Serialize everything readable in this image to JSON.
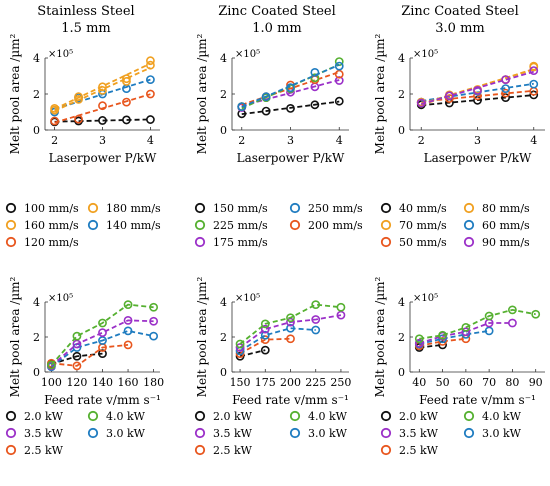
{
  "figure": {
    "columns": [
      {
        "title_line1": "Stainless Steel",
        "title_line2": "1.5 mm"
      },
      {
        "title_line1": "Zinc Coated Steel",
        "title_line2": "1.0 mm"
      },
      {
        "title_line1": "Zinc Coated Steel",
        "title_line2": "3.0 mm"
      }
    ]
  },
  "chart_data": [
    {
      "type": "scatter",
      "panel": "top-left",
      "xlabel": "Laserpower P/kW",
      "ylabel": "Melt pool area /µm²",
      "y_multiplier": "×10⁵",
      "xlim": [
        1.8,
        4.2
      ],
      "ylim": [
        0,
        4
      ],
      "xticks": [
        2,
        3,
        4
      ],
      "yticks": [
        0,
        2,
        4
      ],
      "x": [
        2,
        2.5,
        3,
        3.5,
        4
      ],
      "trendlines": "dashed linear fit per series",
      "series": [
        {
          "name": "100 mm/s",
          "color": "#111111",
          "values": [
            0.45,
            0.5,
            0.53,
            0.56,
            0.58
          ]
        },
        {
          "name": "120 mm/s",
          "color": "#e8561e",
          "values": [
            0.5,
            0.6,
            1.35,
            1.55,
            2.0
          ]
        },
        {
          "name": "140 mm/s",
          "color": "#1f7cc0",
          "values": [
            1.0,
            1.8,
            2.0,
            2.3,
            2.8
          ]
        },
        {
          "name": "160 mm/s",
          "color": "#f0a020",
          "values": [
            1.2,
            1.85,
            2.4,
            2.85,
            3.85
          ]
        },
        {
          "name": "180 mm/s",
          "color": "#f0a020",
          "values": [
            1.1,
            1.7,
            2.2,
            2.7,
            3.6
          ]
        }
      ]
    },
    {
      "type": "scatter",
      "panel": "top-middle",
      "xlabel": "Laserpower P/kW",
      "ylabel": "Melt pool area /µm²",
      "y_multiplier": "×10⁵",
      "xlim": [
        1.8,
        4.2
      ],
      "ylim": [
        0,
        4
      ],
      "xticks": [
        2,
        3,
        4
      ],
      "yticks": [
        0,
        2,
        4
      ],
      "x": [
        2,
        2.5,
        3,
        3.5,
        4
      ],
      "trendlines": "dashed linear fit per series",
      "series": [
        {
          "name": "150 mm/s",
          "color": "#111111",
          "values": [
            0.9,
            1.05,
            1.2,
            1.4,
            1.6
          ]
        },
        {
          "name": "175 mm/s",
          "color": "#9b30c8",
          "values": [
            1.25,
            1.8,
            2.1,
            2.4,
            2.75
          ]
        },
        {
          "name": "200 mm/s",
          "color": "#e8561e",
          "values": [
            1.3,
            1.85,
            2.5,
            2.8,
            3.1
          ]
        },
        {
          "name": "225 mm/s",
          "color": "#55b030",
          "values": [
            1.3,
            1.8,
            2.3,
            2.9,
            3.8
          ]
        },
        {
          "name": "250 mm/s",
          "color": "#1f7cc0",
          "values": [
            1.3,
            1.85,
            2.35,
            3.2,
            3.55
          ]
        }
      ]
    },
    {
      "type": "scatter",
      "panel": "top-right",
      "xlabel": "Laserpower P/kW",
      "ylabel": "Melt pool area /µm²",
      "y_multiplier": "×10⁵",
      "xlim": [
        1.8,
        4.2
      ],
      "ylim": [
        0,
        4
      ],
      "xticks": [
        2,
        3,
        4
      ],
      "yticks": [
        0,
        2,
        4
      ],
      "x": [
        2,
        2.5,
        3,
        3.5,
        4
      ],
      "trendlines": "dashed linear fit per series",
      "series": [
        {
          "name": "40 mm/s",
          "color": "#111111",
          "values": [
            1.4,
            1.5,
            1.65,
            1.8,
            1.95
          ]
        },
        {
          "name": "50 mm/s",
          "color": "#e8561e",
          "values": [
            1.55,
            1.75,
            1.9,
            2.05,
            2.15
          ]
        },
        {
          "name": "60 mm/s",
          "color": "#1f7cc0",
          "values": [
            1.55,
            1.9,
            2.15,
            2.3,
            2.55
          ]
        },
        {
          "name": "70 mm/s",
          "color": "#f0a020",
          "values": [
            1.55,
            1.95,
            2.25,
            2.8,
            3.5
          ]
        },
        {
          "name": "80 mm/s",
          "color": "#f0a020",
          "values": [
            1.5,
            1.9,
            2.2,
            2.8,
            3.55
          ]
        },
        {
          "name": "90 mm/s",
          "color": "#9b30c8",
          "values": [
            1.5,
            1.9,
            2.2,
            2.8,
            3.3
          ]
        }
      ]
    },
    {
      "type": "scatter",
      "panel": "bottom-left",
      "xlabel": "Feed rate v/mm s⁻¹",
      "ylabel": "Melt pool area /µm²",
      "y_multiplier": "×10⁵",
      "xlim": [
        95,
        185
      ],
      "ylim": [
        0,
        4
      ],
      "xticks": [
        100,
        120,
        140,
        160,
        180
      ],
      "yticks": [
        0,
        2,
        4
      ],
      "connectors": "dashed",
      "series": [
        {
          "name": "2.0 kW",
          "color": "#111111",
          "x": [
            100,
            120,
            140
          ],
          "values": [
            0.45,
            0.9,
            1.05
          ]
        },
        {
          "name": "2.5 kW",
          "color": "#e8561e",
          "x": [
            100,
            120,
            140,
            160
          ],
          "values": [
            0.5,
            0.35,
            1.4,
            1.55
          ]
        },
        {
          "name": "3.0 kW",
          "color": "#1f7cc0",
          "x": [
            100,
            120,
            140,
            160,
            180
          ],
          "values": [
            0.3,
            1.4,
            1.8,
            2.35,
            2.05
          ]
        },
        {
          "name": "3.5 kW",
          "color": "#9b30c8",
          "x": [
            100,
            120,
            140,
            160,
            180
          ],
          "values": [
            0.35,
            1.6,
            2.25,
            2.95,
            2.9
          ]
        },
        {
          "name": "4.0 kW",
          "color": "#55b030",
          "x": [
            100,
            120,
            140,
            160,
            180
          ],
          "values": [
            0.4,
            2.05,
            2.8,
            3.85,
            3.7
          ]
        }
      ]
    },
    {
      "type": "scatter",
      "panel": "bottom-middle",
      "xlabel": "Feed rate v/mm s⁻¹",
      "ylabel": "Melt pool area /µm²",
      "y_multiplier": "×10⁵",
      "xlim": [
        142,
        258
      ],
      "ylim": [
        0,
        4
      ],
      "xticks": [
        150,
        175,
        200,
        225,
        250
      ],
      "yticks": [
        0,
        2,
        4
      ],
      "connectors": "dashed",
      "series": [
        {
          "name": "2.0 kW",
          "color": "#111111",
          "x": [
            150,
            175
          ],
          "values": [
            0.9,
            1.25
          ]
        },
        {
          "name": "2.5 kW",
          "color": "#e8561e",
          "x": [
            150,
            175,
            200
          ],
          "values": [
            1.05,
            1.85,
            1.9
          ]
        },
        {
          "name": "3.0 kW",
          "color": "#1f7cc0",
          "x": [
            150,
            175,
            200,
            225
          ],
          "values": [
            1.2,
            2.1,
            2.5,
            2.4
          ]
        },
        {
          "name": "3.5 kW",
          "color": "#9b30c8",
          "x": [
            150,
            175,
            200,
            225,
            250
          ],
          "values": [
            1.4,
            2.45,
            2.85,
            3.0,
            3.25
          ]
        },
        {
          "name": "4.0 kW",
          "color": "#55b030",
          "x": [
            150,
            175,
            200,
            225,
            250
          ],
          "values": [
            1.6,
            2.75,
            3.1,
            3.85,
            3.7
          ]
        }
      ]
    },
    {
      "type": "scatter",
      "panel": "bottom-right",
      "xlabel": "Feed rate v/mm s⁻¹",
      "ylabel": "Melt pool area /µm²",
      "y_multiplier": "×10⁵",
      "xlim": [
        36,
        94
      ],
      "ylim": [
        0,
        4
      ],
      "xticks": [
        40,
        50,
        60,
        70,
        80,
        90
      ],
      "yticks": [
        0,
        2,
        4
      ],
      "connectors": "dashed",
      "series": [
        {
          "name": "2.0 kW",
          "color": "#111111",
          "x": [
            40,
            50
          ],
          "values": [
            1.4,
            1.55
          ]
        },
        {
          "name": "2.5 kW",
          "color": "#e8561e",
          "x": [
            40,
            50,
            60
          ],
          "values": [
            1.5,
            1.75,
            1.9
          ]
        },
        {
          "name": "3.0 kW",
          "color": "#1f7cc0",
          "x": [
            40,
            50,
            60,
            70
          ],
          "values": [
            1.6,
            1.9,
            2.15,
            2.35
          ]
        },
        {
          "name": "3.5 kW",
          "color": "#9b30c8",
          "x": [
            40,
            50,
            60,
            70,
            80
          ],
          "values": [
            1.65,
            2.05,
            2.3,
            2.8,
            2.8
          ]
        },
        {
          "name": "4.0 kW",
          "color": "#55b030",
          "x": [
            40,
            50,
            60,
            70,
            80,
            90
          ],
          "values": [
            1.9,
            2.1,
            2.55,
            3.2,
            3.55,
            3.3
          ]
        }
      ]
    }
  ]
}
